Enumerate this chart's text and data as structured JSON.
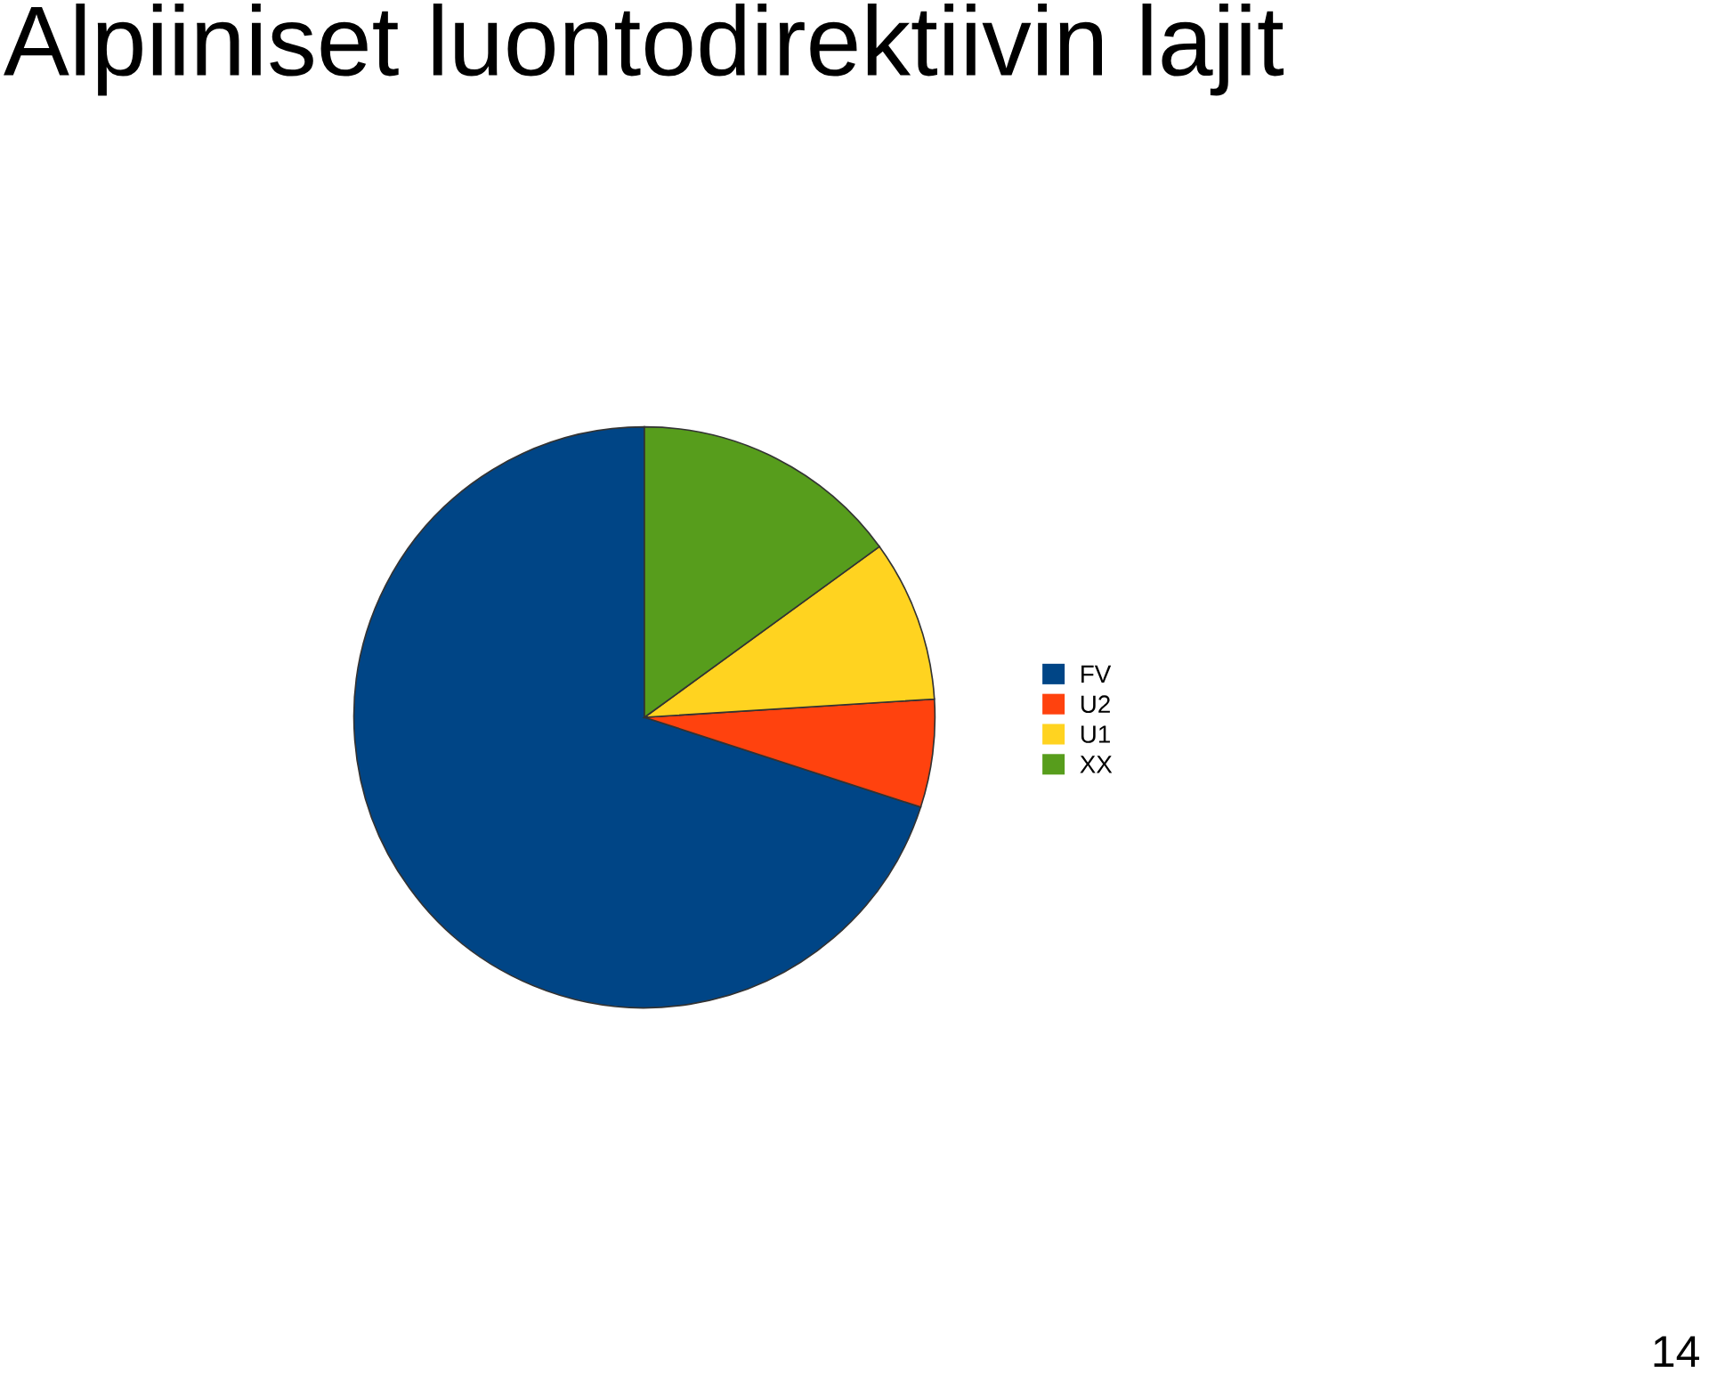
{
  "chart_data": {
    "type": "pie",
    "title": "Alpiiniset luontodirektiivin lajit",
    "categories": [
      "FV",
      "U2",
      "U1",
      "XX"
    ],
    "values": [
      70,
      6,
      9,
      15
    ],
    "colors": [
      "#004586",
      "#ff420e",
      "#ffd320",
      "#579d1c"
    ],
    "legend": "right",
    "annotations": [
      "14"
    ]
  }
}
